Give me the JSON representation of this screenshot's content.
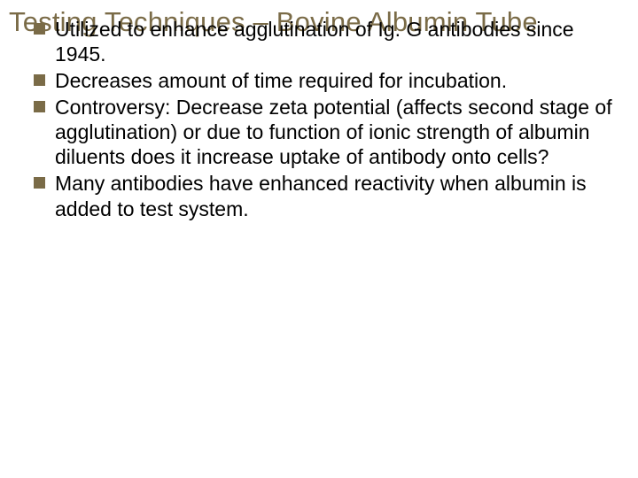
{
  "slide": {
    "title": "Testing Techniques – Bovine Albumin Tube",
    "title_color": "#7a6b47",
    "title_fontsize": 31,
    "background_color": "#ffffff",
    "bullets": [
      {
        "text": "Utilized to enhance agglutination of Ig. G antibodies since 1945."
      },
      {
        "text": "Decreases amount of time required for incubation."
      },
      {
        "text": "Controversy:  Decrease zeta potential (affects second stage of agglutination) or due to function of ionic strength of albumin diluents does it increase uptake of antibody onto cells?"
      },
      {
        "text": "Many antibodies have enhanced reactivity when albumin is added to test system."
      }
    ],
    "bullet_marker_color": "#7a6b47",
    "bullet_text_color": "#000000",
    "bullet_fontsize": 23
  }
}
